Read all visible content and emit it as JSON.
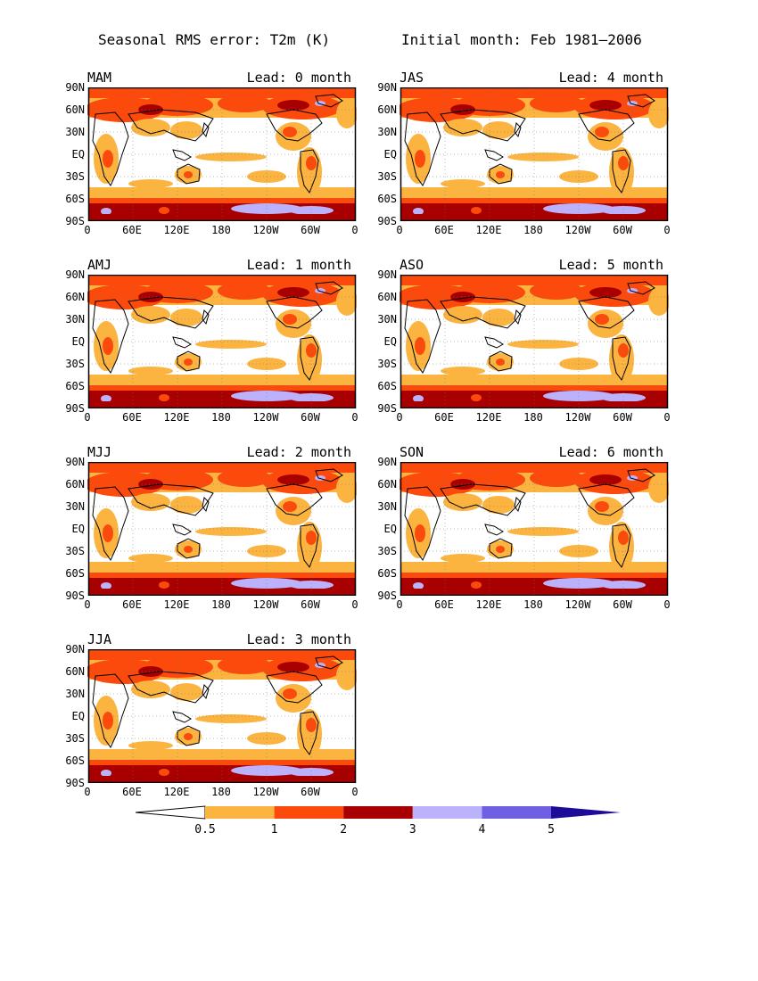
{
  "title_left": "Seasonal RMS error: T2m (K)",
  "title_right": "Initial month: Feb 1981–2006",
  "lat_labels": [
    "90N",
    "60N",
    "30N",
    "EQ",
    "30S",
    "60S",
    "90S"
  ],
  "lon_labels": [
    "0",
    "60E",
    "120E",
    "180",
    "120W",
    "60W",
    "0"
  ],
  "panels": [
    {
      "season": "MAM",
      "lead": "Lead: 0 month"
    },
    {
      "season": "JAS",
      "lead": "Lead: 4 month"
    },
    {
      "season": "AMJ",
      "lead": "Lead: 1 month"
    },
    {
      "season": "ASO",
      "lead": "Lead: 5 month"
    },
    {
      "season": "MJJ",
      "lead": "Lead: 2 month"
    },
    {
      "season": "SON",
      "lead": "Lead: 6 month"
    },
    {
      "season": "JJA",
      "lead": "Lead: 3 month"
    }
  ],
  "colorbar": {
    "labels": [
      "0.5",
      "1",
      "2",
      "3",
      "4",
      "5"
    ],
    "colors": [
      "#ffffff",
      "#fbb440",
      "#fb4a0c",
      "#a80000",
      "#bcb2fb",
      "#6e5fe3",
      "#1f0b99"
    ]
  }
}
